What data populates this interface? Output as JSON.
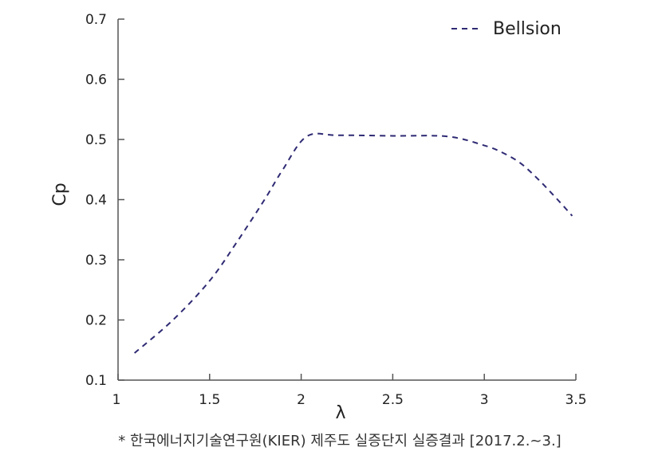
{
  "chart_data": {
    "type": "line",
    "title": "",
    "xlabel": "λ",
    "ylabel": "Cp",
    "xlim": [
      1,
      3.5
    ],
    "ylim": [
      0.1,
      0.7
    ],
    "x_ticks": [
      1,
      1.5,
      2,
      2.5,
      3,
      3.5
    ],
    "y_ticks": [
      0.1,
      0.2,
      0.3,
      0.4,
      0.5,
      0.6,
      0.7
    ],
    "x_tick_labels": [
      "1",
      "1.5",
      "2",
      "2.5",
      "3",
      "3.5"
    ],
    "y_tick_labels": [
      "0.1",
      "0.2",
      "0.3",
      "0.4",
      "0.5",
      "0.6",
      "0.7"
    ],
    "grid": false,
    "legend_position": "top-right",
    "series": [
      {
        "name": "Bellsion",
        "color": "#2e2a73",
        "line_style": "dashed",
        "x": [
          1.09,
          1.3,
          1.5,
          1.65,
          1.8,
          1.9,
          2.03,
          2.2,
          2.5,
          2.8,
          3.0,
          3.1,
          3.2,
          3.3,
          3.4,
          3.48
        ],
        "y": [
          0.145,
          0.2,
          0.265,
          0.33,
          0.4,
          0.45,
          0.505,
          0.507,
          0.506,
          0.505,
          0.49,
          0.478,
          0.46,
          0.432,
          0.4,
          0.373
        ]
      }
    ],
    "footnote": "* 한국에너지기술연구원(KIER) 제주도 실증단지 실증결과 [2017.2.~3.]"
  }
}
